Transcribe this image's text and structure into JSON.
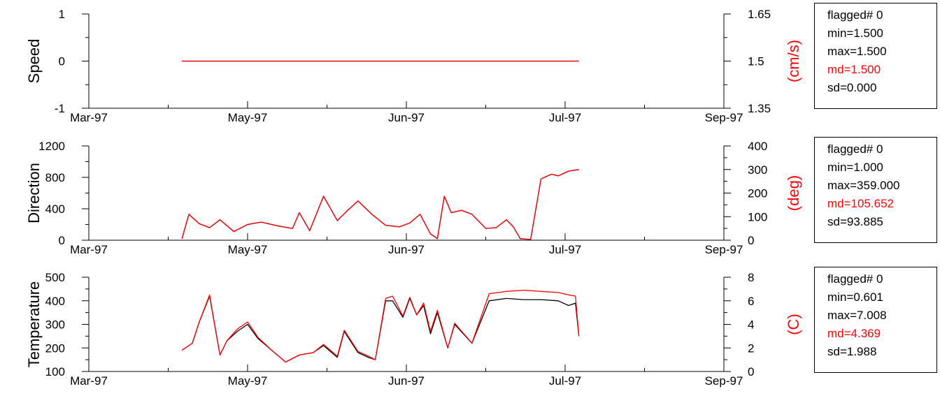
{
  "colors": {
    "primary": "#000000",
    "secondary": "#ff0000",
    "stat_highlight": "#ff0000"
  },
  "chart_data": [
    {
      "type": "line",
      "panel": "speed",
      "ylabel": "Speed",
      "y2label": "(cm/s)",
      "ylim": [
        -1,
        1
      ],
      "yticks": [
        "1",
        "0",
        "-1"
      ],
      "y2lim": [
        1.35,
        1.65
      ],
      "y2ticks": [
        "1.65",
        "1.5",
        "1.35"
      ],
      "xlim": [
        "1997-03-01",
        "1997-09-01"
      ],
      "xticks": [
        "Mar-97",
        "May-97",
        "Jun-97",
        "Jul-97",
        "Sep-97"
      ],
      "grid": false,
      "series": [
        {
          "color": "#000000",
          "x": [
            "1997-03-28",
            "1997-07-21"
          ],
          "y": [
            0,
            0
          ]
        },
        {
          "color": "#ff0000",
          "axis": "right",
          "x": [
            "1997-03-28",
            "1997-07-21"
          ],
          "y": [
            1.5,
            1.5
          ]
        }
      ]
    },
    {
      "type": "line",
      "panel": "direction",
      "ylabel": "Direction",
      "y2label": "(deg)",
      "ylim": [
        0,
        1200
      ],
      "yticks": [
        "1200",
        "800",
        "400",
        "0"
      ],
      "y2lim": [
        0,
        400
      ],
      "y2ticks": [
        "400",
        "300",
        "200",
        "100",
        "0"
      ],
      "xlim": [
        "1997-03-01",
        "1997-09-01"
      ],
      "xticks": [
        "Mar-97",
        "May-97",
        "Jun-97",
        "Jul-97",
        "Sep-97"
      ],
      "grid": false,
      "series": [
        {
          "color": "#000000",
          "x": [
            "1997-03-28",
            "1997-03-30",
            "1997-04-02",
            "1997-04-05",
            "1997-04-08",
            "1997-04-12",
            "1997-04-16",
            "1997-04-20",
            "1997-04-25",
            "1997-04-29",
            "1997-05-01",
            "1997-05-04",
            "1997-05-08",
            "1997-05-12",
            "1997-05-15",
            "1997-05-18",
            "1997-05-22",
            "1997-05-26",
            "1997-05-30",
            "1997-06-02",
            "1997-06-05",
            "1997-06-08",
            "1997-06-10",
            "1997-06-12",
            "1997-06-14",
            "1997-06-17",
            "1997-06-20",
            "1997-06-24",
            "1997-06-27",
            "1997-06-30",
            "1997-07-02",
            "1997-07-04",
            "1997-07-07",
            "1997-07-10",
            "1997-07-13",
            "1997-07-15",
            "1997-07-18",
            "1997-07-21"
          ],
          "y": [
            20,
            330,
            210,
            160,
            260,
            110,
            200,
            230,
            180,
            150,
            350,
            120,
            560,
            250,
            380,
            500,
            330,
            190,
            170,
            220,
            330,
            80,
            20,
            560,
            350,
            380,
            330,
            150,
            160,
            260,
            170,
            20,
            10,
            780,
            840,
            820,
            880,
            900
          ]
        },
        {
          "color": "#ff0000",
          "axis": "right",
          "x": [
            "1997-03-28",
            "1997-03-30",
            "1997-04-02",
            "1997-04-05",
            "1997-04-08",
            "1997-04-12",
            "1997-04-16",
            "1997-04-20",
            "1997-04-25",
            "1997-04-29",
            "1997-05-01",
            "1997-05-04",
            "1997-05-08",
            "1997-05-12",
            "1997-05-15",
            "1997-05-18",
            "1997-05-22",
            "1997-05-26",
            "1997-05-30",
            "1997-06-02",
            "1997-06-05",
            "1997-06-08",
            "1997-06-10",
            "1997-06-12",
            "1997-06-14",
            "1997-06-17",
            "1997-06-20",
            "1997-06-24",
            "1997-06-27",
            "1997-06-30",
            "1997-07-02",
            "1997-07-04",
            "1997-07-07",
            "1997-07-10",
            "1997-07-13",
            "1997-07-15",
            "1997-07-18",
            "1997-07-21"
          ],
          "y": [
            7,
            110,
            70,
            53,
            87,
            37,
            67,
            77,
            60,
            50,
            117,
            40,
            187,
            83,
            127,
            167,
            110,
            63,
            57,
            73,
            110,
            27,
            7,
            187,
            117,
            127,
            110,
            50,
            53,
            87,
            57,
            7,
            3,
            260,
            280,
            273,
            293,
            300
          ]
        }
      ]
    },
    {
      "type": "line",
      "panel": "temperature",
      "ylabel": "Temperature",
      "y2label": "(C)",
      "ylim": [
        100,
        500
      ],
      "yticks": [
        "500",
        "400",
        "300",
        "200",
        "100"
      ],
      "y2lim": [
        0,
        8
      ],
      "y2ticks": [
        "8",
        "6",
        "4",
        "2",
        "0"
      ],
      "xlim": [
        "1997-03-01",
        "1997-09-01"
      ],
      "xticks": [
        "Mar-97",
        "May-97",
        "Jun-97",
        "Jul-97",
        "Sep-97"
      ],
      "grid": false,
      "series": [
        {
          "color": "#000000",
          "x": [
            "1997-03-28",
            "1997-03-31",
            "1997-04-02",
            "1997-04-05",
            "1997-04-08",
            "1997-04-10",
            "1997-04-13",
            "1997-04-16",
            "1997-04-19",
            "1997-04-23",
            "1997-04-27",
            "1997-05-01",
            "1997-05-05",
            "1997-05-08",
            "1997-05-12",
            "1997-05-14",
            "1997-05-18",
            "1997-05-21",
            "1997-05-23",
            "1997-05-26",
            "1997-05-28",
            "1997-05-31",
            "1997-06-02",
            "1997-06-04",
            "1997-06-06",
            "1997-06-08",
            "1997-06-10",
            "1997-06-13",
            "1997-06-15",
            "1997-06-20",
            "1997-06-25",
            "1997-06-30",
            "1997-07-05",
            "1997-07-10",
            "1997-07-15",
            "1997-07-18",
            "1997-07-20",
            "1997-07-21"
          ],
          "y": [
            190,
            220,
            310,
            420,
            170,
            230,
            270,
            300,
            240,
            190,
            140,
            170,
            180,
            210,
            160,
            270,
            180,
            160,
            150,
            400,
            400,
            330,
            410,
            340,
            380,
            260,
            350,
            200,
            300,
            220,
            400,
            410,
            405,
            405,
            400,
            380,
            390,
            250
          ]
        },
        {
          "color": "#ff0000",
          "axis": "right",
          "x": [
            "1997-03-28",
            "1997-03-31",
            "1997-04-02",
            "1997-04-05",
            "1997-04-08",
            "1997-04-10",
            "1997-04-13",
            "1997-04-16",
            "1997-04-19",
            "1997-04-23",
            "1997-04-27",
            "1997-05-01",
            "1997-05-05",
            "1997-05-08",
            "1997-05-12",
            "1997-05-14",
            "1997-05-18",
            "1997-05-21",
            "1997-05-23",
            "1997-05-26",
            "1997-05-28",
            "1997-05-31",
            "1997-06-02",
            "1997-06-04",
            "1997-06-06",
            "1997-06-08",
            "1997-06-10",
            "1997-06-13",
            "1997-06-15",
            "1997-06-20",
            "1997-06-25",
            "1997-06-30",
            "1997-07-05",
            "1997-07-10",
            "1997-07-15",
            "1997-07-18",
            "1997-07-20",
            "1997-07-21"
          ],
          "y": [
            1.8,
            2.4,
            4.2,
            6.5,
            1.4,
            2.6,
            3.6,
            4.2,
            2.9,
            1.8,
            0.8,
            1.4,
            1.6,
            2.3,
            1.3,
            3.5,
            1.7,
            1.3,
            1.0,
            6.2,
            6.4,
            4.7,
            6.3,
            4.8,
            5.8,
            3.4,
            5.2,
            2.0,
            4.1,
            2.4,
            6.6,
            6.8,
            6.9,
            6.8,
            6.7,
            6.5,
            6.4,
            3.0
          ]
        }
      ]
    }
  ],
  "stats": [
    {
      "flagged": "flagged# 0",
      "min": "min=1.500",
      "max": "max=1.500",
      "md": "md=1.500",
      "sd": "sd=0.000"
    },
    {
      "flagged": "flagged# 0",
      "min": "min=1.000",
      "max": "max=359.000",
      "md": "md=105.652",
      "sd": "sd=93.885"
    },
    {
      "flagged": "flagged# 0",
      "min": "min=0.601",
      "max": "max=7.008",
      "md": "md=4.369",
      "sd": "sd=1.988"
    }
  ]
}
